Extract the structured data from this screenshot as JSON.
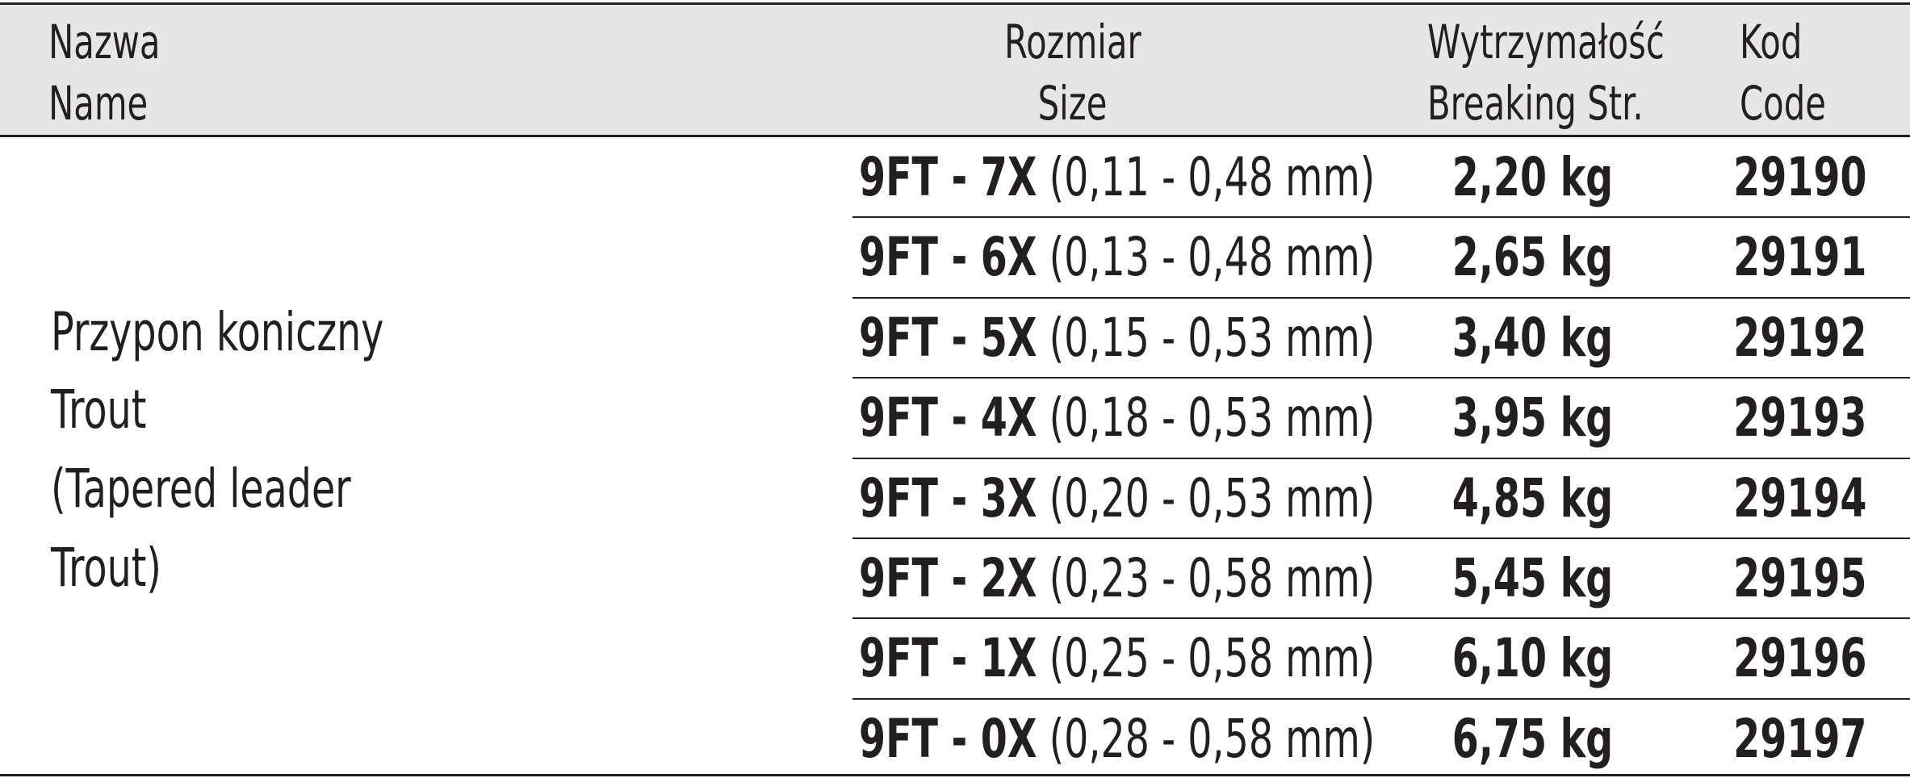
{
  "table": {
    "columns": [
      {
        "pl": "Nazwa",
        "en": "Name"
      },
      {
        "pl": "Rozmiar",
        "en": "Size"
      },
      {
        "pl": "Wytrzymałość",
        "en": "Breaking Str."
      },
      {
        "pl": "Kod",
        "en": "Code"
      }
    ],
    "product": {
      "lines": [
        "Przypon koniczny",
        "Trout",
        "(Tapered leader",
        "Trout)"
      ]
    },
    "rows": [
      {
        "size": "9FT - 7X",
        "range": "(0,11 - 0,48 mm)",
        "strength": "2,20 kg",
        "code": "29190"
      },
      {
        "size": "9FT - 6X",
        "range": "(0,13 - 0,48 mm)",
        "strength": "2,65 kg",
        "code": "29191"
      },
      {
        "size": "9FT - 5X",
        "range": "(0,15 - 0,53 mm)",
        "strength": "3,40 kg",
        "code": "29192"
      },
      {
        "size": "9FT - 4X",
        "range": "(0,18 - 0,53 mm)",
        "strength": "3,95 kg",
        "code": "29193"
      },
      {
        "size": "9FT - 3X",
        "range": "(0,20 - 0,53 mm)",
        "strength": "4,85 kg",
        "code": "29194"
      },
      {
        "size": "9FT - 2X",
        "range": "(0,23 - 0,58 mm)",
        "strength": "5,45 kg",
        "code": "29195"
      },
      {
        "size": "9FT - 1X",
        "range": "(0,25 - 0,58 mm)",
        "strength": "6,10 kg",
        "code": "29196"
      },
      {
        "size": "9FT - 0X",
        "range": "(0,28 - 0,58 mm)",
        "strength": "6,75 kg",
        "code": "29197"
      }
    ]
  }
}
